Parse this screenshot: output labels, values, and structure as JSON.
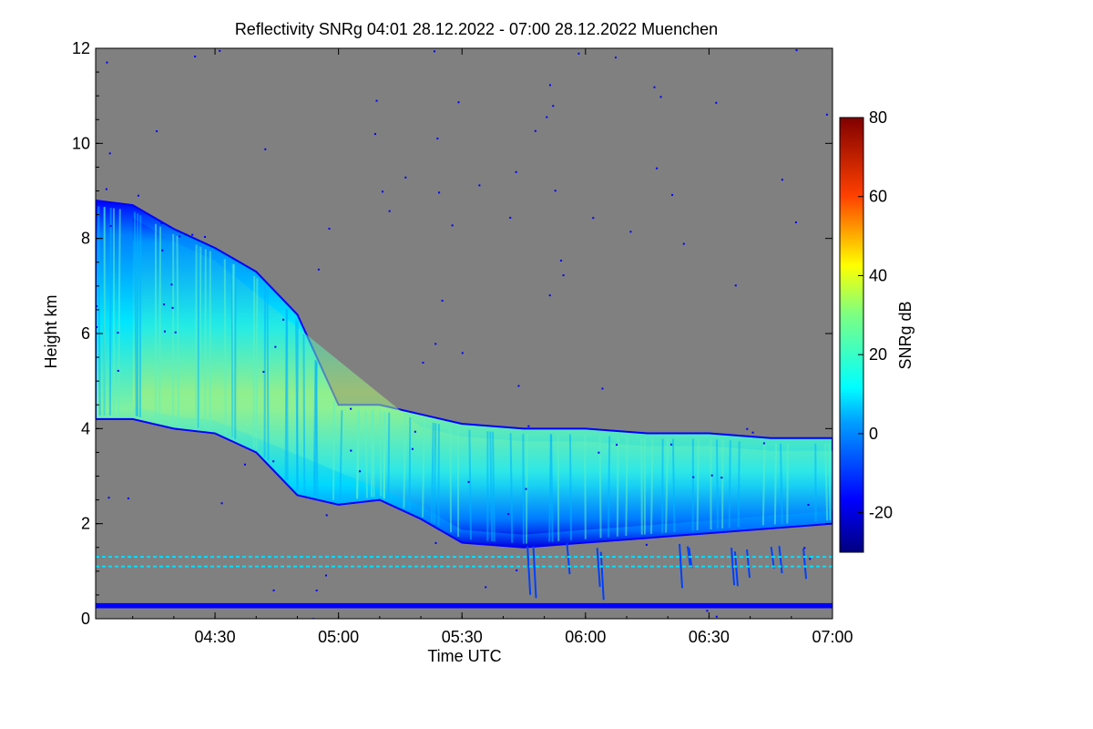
{
  "chart_data": {
    "type": "heatmap",
    "title": "Reflectivity SNRg   04:01 28.12.2022 - 07:00 28.12.2022 Muenchen",
    "xlabel": "Time UTC",
    "ylabel": "Height km",
    "xlim": [
      "04:01",
      "07:00"
    ],
    "ylim": [
      0,
      12
    ],
    "x_ticks": [
      "04:30",
      "05:00",
      "05:30",
      "06:00",
      "06:30",
      "07:00"
    ],
    "y_ticks": [
      "0",
      "2",
      "4",
      "6",
      "8",
      "10",
      "12"
    ],
    "background_color": "#808080",
    "colorbar": {
      "label": "SNRg dB",
      "range": [
        -30,
        80
      ],
      "ticks": [
        "-20",
        "0",
        "20",
        "40",
        "60",
        "80"
      ],
      "colormap": "jet"
    },
    "cloud_layer": {
      "description_values": "approximate echo layer extent (time, base km, top km, peak SNR dB)",
      "samples": [
        {
          "t": "04:01",
          "base_km": 4.2,
          "top_km": 8.8,
          "peak_db": 18
        },
        {
          "t": "04:10",
          "base_km": 4.2,
          "top_km": 8.7,
          "peak_db": 22
        },
        {
          "t": "04:20",
          "base_km": 4.0,
          "top_km": 8.2,
          "peak_db": 24
        },
        {
          "t": "04:30",
          "base_km": 3.9,
          "top_km": 7.8,
          "peak_db": 22
        },
        {
          "t": "04:40",
          "base_km": 3.5,
          "top_km": 7.3,
          "peak_db": 20
        },
        {
          "t": "04:50",
          "base_km": 2.6,
          "top_km": 6.4,
          "peak_db": 18
        },
        {
          "t": "05:00",
          "base_km": 2.4,
          "top_km": 4.5,
          "peak_db": 16
        },
        {
          "t": "05:10",
          "base_km": 2.5,
          "top_km": 4.5,
          "peak_db": 18
        },
        {
          "t": "05:20",
          "base_km": 2.1,
          "top_km": 4.3,
          "peak_db": 22
        },
        {
          "t": "05:30",
          "base_km": 1.6,
          "top_km": 4.1,
          "peak_db": 26
        },
        {
          "t": "05:45",
          "base_km": 1.5,
          "top_km": 4.0,
          "peak_db": 28
        },
        {
          "t": "06:00",
          "base_km": 1.6,
          "top_km": 4.0,
          "peak_db": 30
        },
        {
          "t": "06:15",
          "base_km": 1.7,
          "top_km": 3.9,
          "peak_db": 24
        },
        {
          "t": "06:30",
          "base_km": 1.8,
          "top_km": 3.9,
          "peak_db": 22
        },
        {
          "t": "06:45",
          "base_km": 1.9,
          "top_km": 3.8,
          "peak_db": 22
        },
        {
          "t": "07:00",
          "base_km": 2.0,
          "top_km": 3.8,
          "peak_db": 24
        }
      ]
    },
    "ground_clutter_lines_km": [
      0.25,
      0.3,
      1.1,
      1.3
    ]
  }
}
